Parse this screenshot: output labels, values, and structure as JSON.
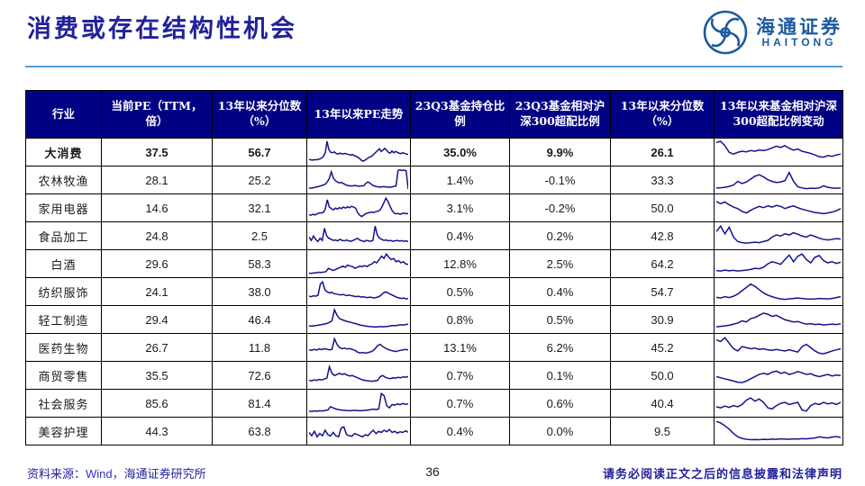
{
  "title": "消费或存在结构性机会",
  "logo": {
    "cn": "海通证券",
    "en": "HAITONG"
  },
  "colors": {
    "accent_navy": "#22229b",
    "header_bg": "#010183",
    "rule_blue": "#5b9bd5",
    "sparkline": "#14148c",
    "logo_blue": "#1c5aa0"
  },
  "table": {
    "headers": [
      "行业",
      "当前PE（TTM，倍）",
      "13年以来分位数（%）",
      "13年以来PE走势",
      "23Q3基金持仓比例",
      "23Q3基金相对沪深300超配比例",
      "13年以来分位数（%）",
      "13年以来基金相对沪深300超配比例变动"
    ],
    "rows": [
      {
        "industry": "大消费",
        "bold": true,
        "pe": "37.5",
        "pe_pct": "56.7",
        "hold": "35.0%",
        "over": "9.9%",
        "over_pct": "26.1",
        "pe_trend": [
          18,
          16,
          15,
          17,
          16,
          18,
          20,
          24,
          32,
          48,
          100,
          62,
          50,
          48,
          52,
          45,
          42,
          46,
          44,
          43,
          45,
          42,
          40,
          38,
          40,
          36,
          32,
          28,
          22,
          14,
          10,
          14,
          20,
          26,
          30,
          34,
          42,
          50,
          58,
          66,
          54,
          60,
          68,
          60,
          50,
          46,
          56,
          48,
          54,
          50,
          46,
          44,
          48,
          45,
          42,
          40
        ],
        "over_trend": [
          95,
          100,
          80,
          50,
          42,
          50,
          55,
          52,
          58,
          55,
          60,
          58,
          62,
          70,
          78,
          72,
          80,
          68,
          60,
          65,
          55,
          50,
          45,
          38,
          30,
          28,
          35,
          32,
          38,
          42
        ]
      },
      {
        "industry": "农林牧渔",
        "bold": false,
        "pe": "28.1",
        "pe_pct": "25.2",
        "hold": "1.4%",
        "over": "-0.1%",
        "over_pct": "33.3",
        "pe_trend": [
          15,
          14,
          16,
          18,
          20,
          22,
          25,
          28,
          32,
          42,
          58,
          88,
          60,
          48,
          42,
          38,
          40,
          35,
          30,
          26,
          25,
          24,
          25,
          26,
          24,
          23,
          25,
          24,
          35,
          42,
          38,
          30,
          25,
          22,
          20,
          19,
          20,
          21,
          20,
          19,
          18,
          20,
          22,
          24,
          95,
          97,
          94,
          96,
          93,
          10
        ],
        "over_trend": [
          15,
          16,
          18,
          22,
          28,
          45,
          35,
          42,
          55,
          68,
          75,
          65,
          52,
          45,
          40,
          42,
          48,
          85,
          45,
          20,
          15,
          12,
          14,
          13,
          15,
          25,
          18,
          15,
          14,
          15
        ]
      },
      {
        "industry": "家用电器",
        "bold": false,
        "pe": "14.6",
        "pe_pct": "32.1",
        "hold": "3.1%",
        "over": "-0.2%",
        "over_pct": "50.0",
        "pe_trend": [
          20,
          18,
          22,
          19,
          24,
          28,
          28,
          30,
          45,
          88,
          55,
          48,
          42,
          50,
          46,
          52,
          48,
          55,
          50,
          56,
          52,
          58,
          55,
          50,
          30,
          18,
          12,
          18,
          25,
          28,
          30,
          32,
          30,
          34,
          36,
          40,
          55,
          75,
          95,
          80,
          60,
          40,
          28,
          24,
          26,
          22,
          25,
          28,
          24,
          26
        ],
        "over_trend": [
          80,
          70,
          78,
          65,
          55,
          48,
          35,
          28,
          40,
          50,
          58,
          52,
          60,
          55,
          62,
          58,
          48,
          55,
          60,
          52,
          45,
          40,
          35,
          30,
          28,
          25,
          28,
          32,
          38,
          48
        ]
      },
      {
        "industry": "食品加工",
        "bold": false,
        "pe": "24.8",
        "pe_pct": "2.5",
        "hold": "0.4%",
        "over": "0.2%",
        "over_pct": "42.8",
        "pe_trend": [
          45,
          30,
          50,
          35,
          25,
          40,
          30,
          85,
          50,
          40,
          35,
          30,
          32,
          28,
          35,
          30,
          28,
          32,
          28,
          26,
          30,
          35,
          40,
          32,
          28,
          25,
          30,
          28,
          26,
          30,
          95,
          55,
          40,
          35,
          30,
          32,
          28,
          30,
          26,
          28,
          30,
          27,
          29,
          26,
          28,
          25
        ],
        "over_trend": [
          70,
          95,
          60,
          90,
          45,
          25,
          20,
          18,
          20,
          22,
          20,
          25,
          30,
          45,
          55,
          50,
          60,
          55,
          65,
          58,
          50,
          45,
          55,
          48,
          40,
          35,
          32,
          35,
          38,
          36
        ]
      },
      {
        "industry": "白酒",
        "bold": false,
        "pe": "29.6",
        "pe_pct": "58.3",
        "hold": "12.8%",
        "over": "2.5%",
        "over_pct": "64.2",
        "pe_trend": [
          8,
          7,
          9,
          10,
          12,
          11,
          13,
          15,
          30,
          25,
          20,
          25,
          30,
          35,
          40,
          35,
          45,
          40,
          38,
          30,
          35,
          40,
          38,
          42,
          38,
          45,
          50,
          60,
          55,
          70,
          85,
          75,
          95,
          80,
          70,
          75,
          60,
          65,
          55,
          60,
          50,
          48
        ],
        "over_trend": [
          20,
          18,
          22,
          19,
          21,
          18,
          20,
          22,
          25,
          30,
          28,
          35,
          50,
          60,
          55,
          48,
          70,
          90,
          60,
          85,
          95,
          70,
          55,
          80,
          88,
          65,
          55,
          60,
          52,
          58
        ]
      },
      {
        "industry": "纺织服饰",
        "bold": false,
        "pe": "24.1",
        "pe_pct": "38.0",
        "hold": "0.5%",
        "over": "0.4%",
        "over_pct": "54.7",
        "pe_trend": [
          30,
          28,
          32,
          30,
          35,
          85,
          95,
          60,
          50,
          45,
          48,
          42,
          40,
          38,
          36,
          38,
          35,
          33,
          35,
          32,
          30,
          28,
          30,
          26,
          28,
          25,
          24,
          26,
          24,
          22,
          25,
          28,
          35,
          45,
          50,
          45,
          40,
          35,
          30,
          25,
          22,
          20,
          22,
          18,
          20
        ],
        "over_trend": [
          25,
          22,
          28,
          24,
          30,
          40,
          55,
          70,
          85,
          75,
          60,
          45,
          35,
          28,
          22,
          18,
          16,
          18,
          20,
          22,
          20,
          18,
          17,
          18,
          20,
          19,
          18,
          20,
          24,
          28
        ]
      },
      {
        "industry": "轻工制造",
        "bold": false,
        "pe": "29.4",
        "pe_pct": "46.4",
        "hold": "0.8%",
        "over": "0.5%",
        "over_pct": "30.9",
        "pe_trend": [
          22,
          21,
          23,
          24,
          26,
          28,
          30,
          33,
          38,
          45,
          95,
          70,
          55,
          50,
          46,
          42,
          40,
          36,
          33,
          30,
          26,
          24,
          22,
          20,
          19,
          18,
          17,
          18,
          19,
          18,
          19,
          20,
          22,
          24,
          23,
          25,
          27,
          26,
          28,
          30
        ],
        "over_trend": [
          18,
          20,
          22,
          25,
          30,
          35,
          45,
          40,
          55,
          60,
          70,
          80,
          75,
          65,
          70,
          60,
          50,
          45,
          40,
          42,
          35,
          30,
          32,
          28,
          30,
          26,
          28,
          30,
          28,
          32
        ]
      },
      {
        "industry": "医药生物",
        "bold": false,
        "pe": "26.7",
        "pe_pct": "11.8",
        "hold": "13.1%",
        "over": "6.2%",
        "over_pct": "45.2",
        "pe_trend": [
          40,
          38,
          42,
          39,
          44,
          41,
          45,
          43,
          40,
          42,
          90,
          65,
          50,
          45,
          48,
          44,
          46,
          42,
          38,
          30,
          26,
          28,
          25,
          27,
          30,
          35,
          45,
          60,
          65,
          55,
          48,
          42,
          38,
          35,
          32,
          35,
          38,
          40,
          42,
          40
        ],
        "over_trend": [
          85,
          78,
          95,
          70,
          45,
          35,
          55,
          50,
          45,
          48,
          42,
          45,
          40,
          38,
          42,
          38,
          35,
          40,
          35,
          30,
          55,
          65,
          50,
          35,
          25,
          22,
          28,
          35,
          40,
          45
        ]
      },
      {
        "industry": "商贸零售",
        "bold": false,
        "pe": "35.5",
        "pe_pct": "72.6",
        "hold": "0.7%",
        "over": "0.1%",
        "over_pct": "50.0",
        "pe_trend": [
          28,
          26,
          30,
          28,
          32,
          30,
          34,
          38,
          90,
          60,
          50,
          55,
          60,
          55,
          58,
          52,
          48,
          50,
          45,
          40,
          35,
          30,
          28,
          26,
          25,
          24,
          26,
          28,
          45,
          50,
          42,
          38,
          36,
          40,
          38,
          42,
          40,
          44,
          42,
          46
        ],
        "over_trend": [
          45,
          40,
          35,
          30,
          25,
          20,
          18,
          25,
          35,
          45,
          55,
          60,
          55,
          65,
          70,
          60,
          65,
          55,
          60,
          68,
          62,
          55,
          58,
          50,
          45,
          50,
          55,
          48,
          52,
          50
        ]
      },
      {
        "industry": "社会服务",
        "bold": false,
        "pe": "85.6",
        "pe_pct": "81.4",
        "hold": "0.7%",
        "over": "0.6%",
        "over_pct": "40.4",
        "pe_trend": [
          15,
          14,
          16,
          15,
          17,
          16,
          18,
          20,
          35,
          30,
          25,
          22,
          20,
          19,
          18,
          17,
          18,
          19,
          18,
          17,
          18,
          19,
          20,
          22,
          24,
          22,
          25,
          95,
          85,
          40,
          30,
          45,
          42,
          48,
          44,
          50,
          46,
          48
        ],
        "over_trend": [
          35,
          30,
          38,
          32,
          40,
          35,
          45,
          65,
          75,
          60,
          70,
          55,
          30,
          25,
          40,
          50,
          55,
          45,
          50,
          55,
          20,
          15,
          40,
          50,
          45,
          55,
          48,
          52,
          45,
          55
        ]
      },
      {
        "industry": "美容护理",
        "bold": false,
        "pe": "44.3",
        "pe_pct": "63.8",
        "hold": "0.4%",
        "over": "0.0%",
        "over_pct": "9.5",
        "pe_trend": [
          45,
          30,
          50,
          25,
          40,
          30,
          55,
          35,
          28,
          45,
          30,
          25,
          65,
          70,
          35,
          30,
          28,
          40,
          35,
          30,
          25,
          35,
          30,
          45,
          55,
          40,
          50,
          45,
          55,
          48,
          58,
          45,
          50,
          42,
          48,
          45,
          52,
          46
        ],
        "over_trend": [
          95,
          88,
          75,
          60,
          40,
          25,
          18,
          14,
          12,
          13,
          12,
          14,
          13,
          15,
          14,
          16,
          15,
          14,
          16,
          15,
          17,
          16,
          18,
          20,
          25,
          22,
          20,
          24,
          26,
          22
        ]
      }
    ]
  },
  "footer": {
    "source_prefix": "资料来源：",
    "source_wind": "Wind，",
    "source_rest": "海通证券研究所",
    "page": "36",
    "disclaimer": "请务必阅读正文之后的信息披露和法律声明"
  }
}
